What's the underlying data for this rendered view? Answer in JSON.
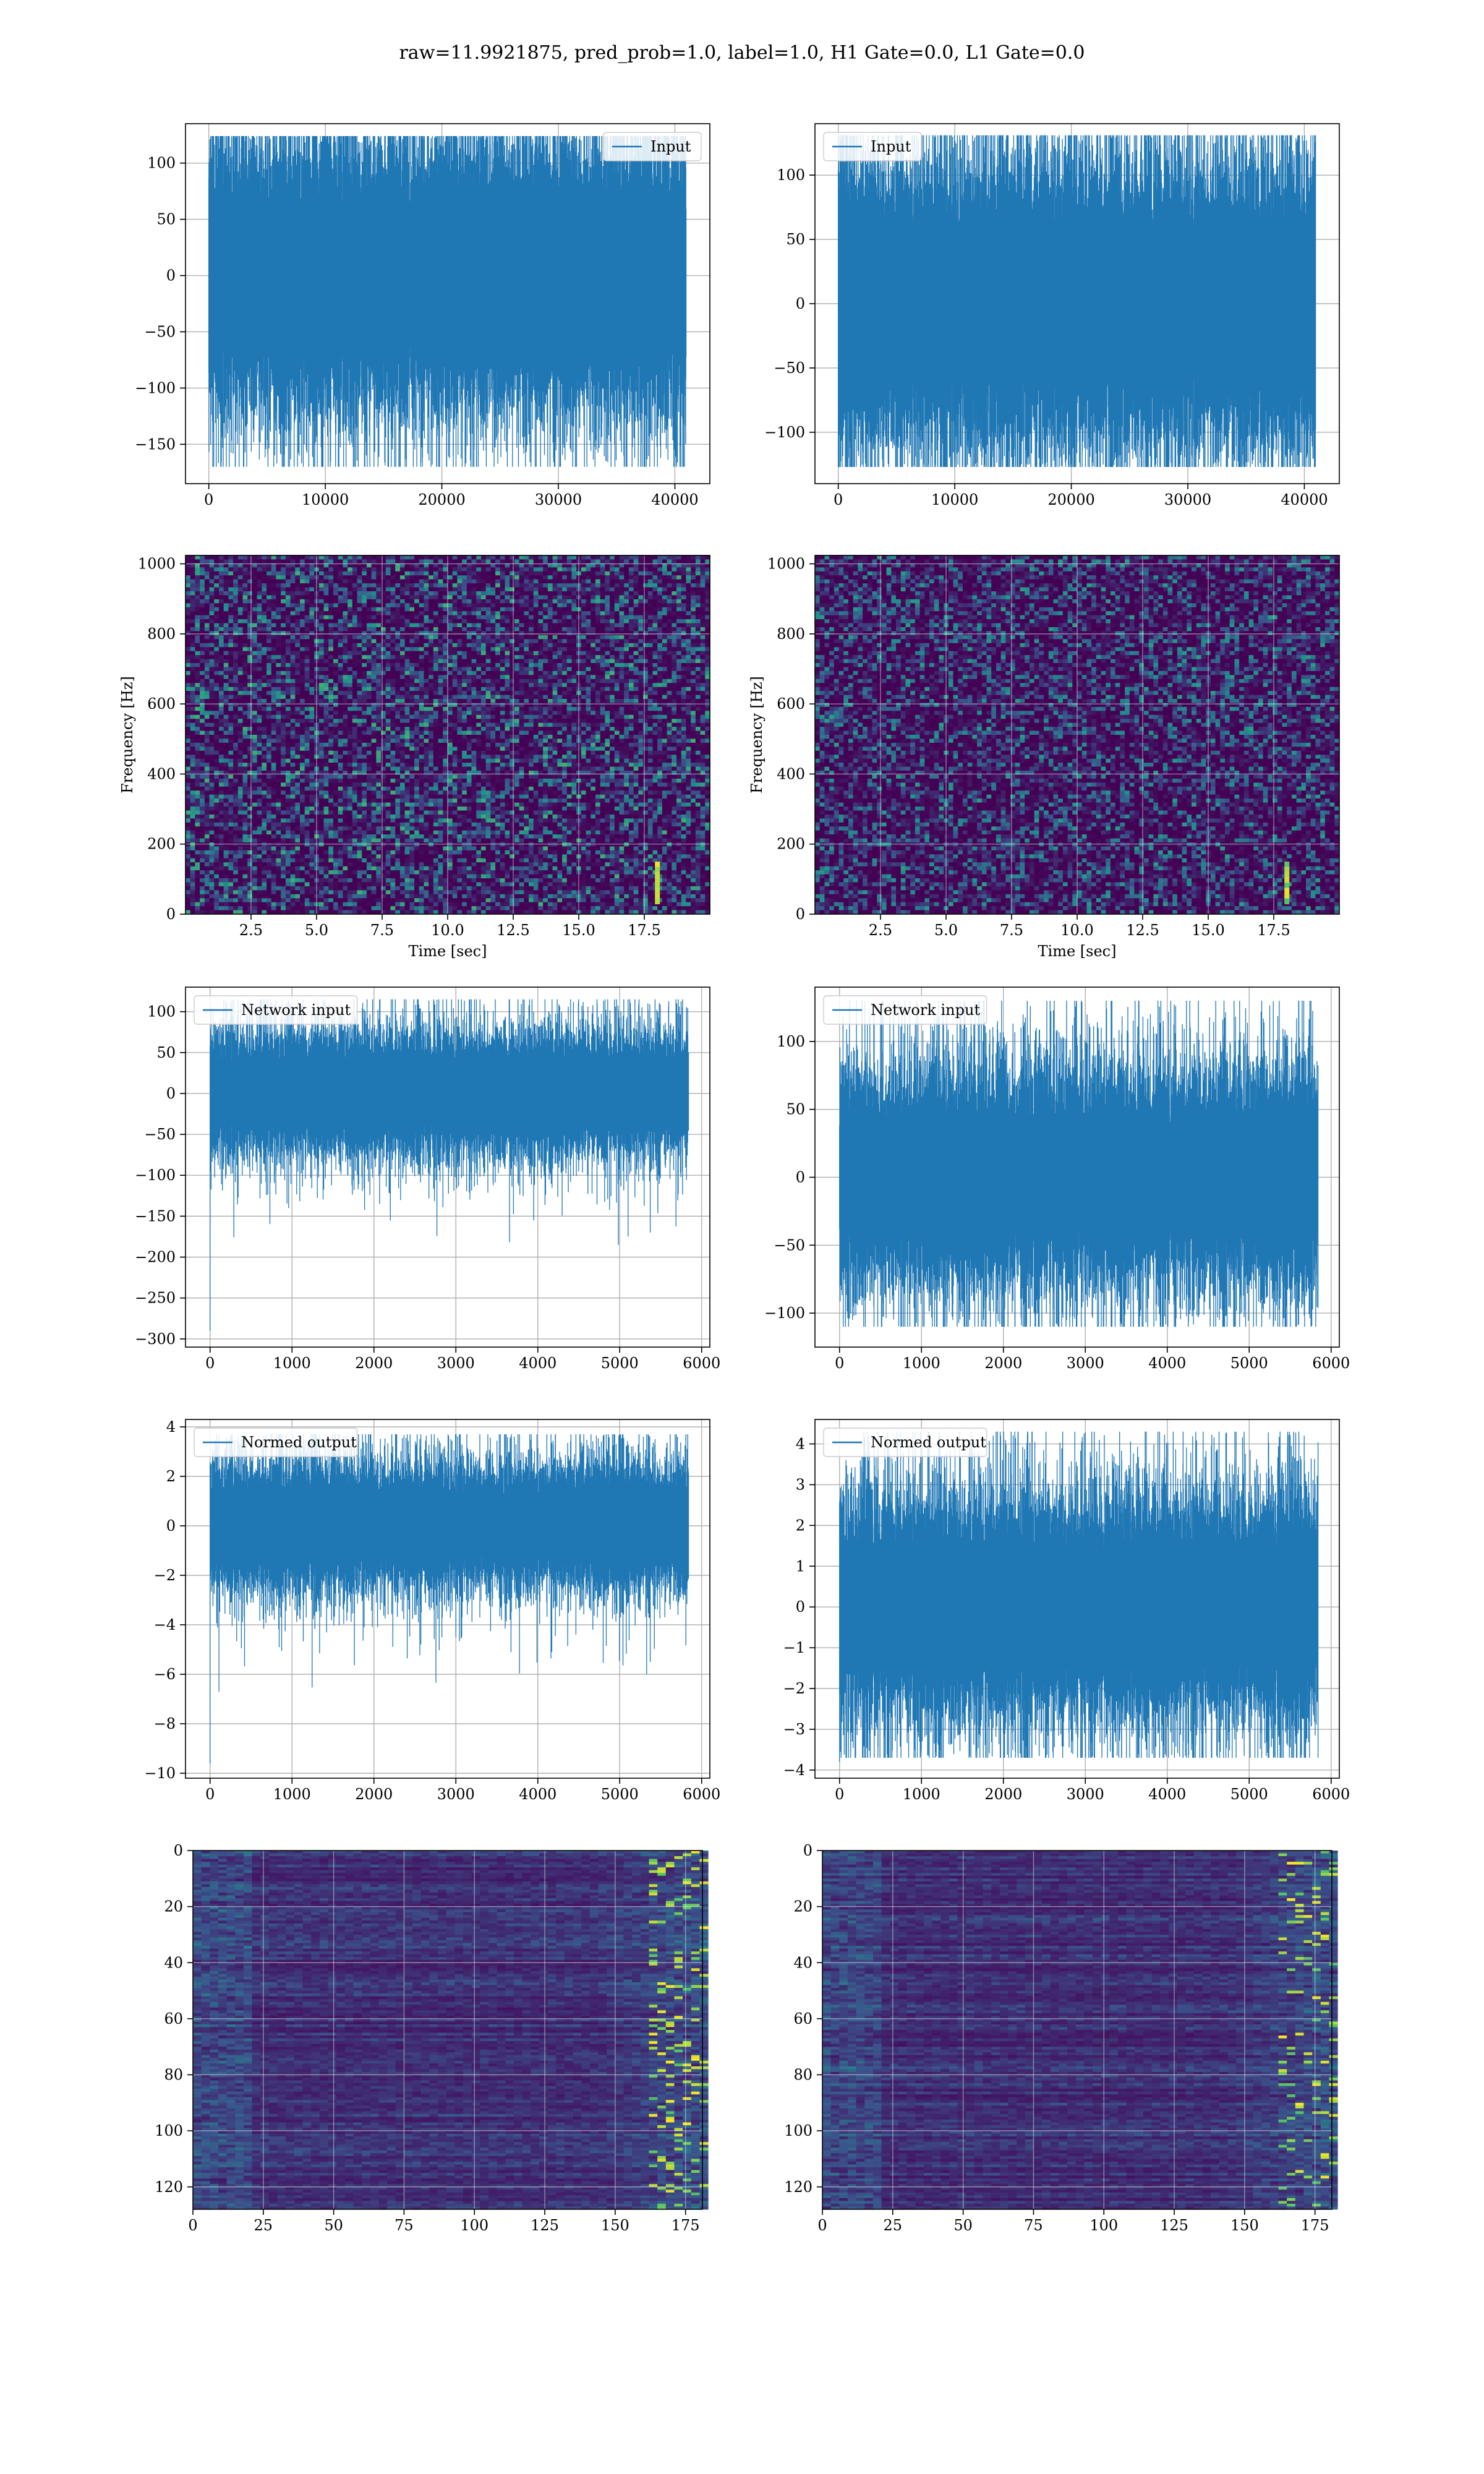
{
  "figure": {
    "title": "raw=11.9921875, pred_prob=1.0, label=1.0, H1 Gate=0.0, L1 Gate=0.0"
  },
  "colors": {
    "line": "#1f77b4",
    "grid": "#b0b0b0",
    "heat_low": "#440154",
    "heat_high": "#fde725"
  },
  "chart_data": [
    {
      "id": "input-left",
      "type": "line",
      "series": [
        {
          "name": "Input",
          "length": 40960,
          "envelope": [
            -100,
            100
          ],
          "min": -170,
          "max": 124
        }
      ],
      "xlim": [
        -2000,
        43000
      ],
      "ylim": [
        -185,
        135
      ],
      "xticks": [
        0,
        10000,
        20000,
        30000,
        40000
      ],
      "yticks": [
        -150,
        -100,
        -50,
        0,
        50,
        100
      ],
      "legend": "top-right",
      "grid": true,
      "xlabel": "",
      "ylabel": ""
    },
    {
      "id": "input-right",
      "type": "line",
      "series": [
        {
          "name": "Input",
          "length": 40960,
          "envelope": [
            -90,
            90
          ],
          "min": -127,
          "max": 131
        }
      ],
      "xlim": [
        -2000,
        43000
      ],
      "ylim": [
        -140,
        140
      ],
      "xticks": [
        0,
        10000,
        20000,
        30000,
        40000
      ],
      "yticks": [
        -100,
        -50,
        0,
        50,
        100
      ],
      "legend": "top-left",
      "grid": true,
      "xlabel": "",
      "ylabel": ""
    },
    {
      "id": "spectrogram-left",
      "type": "heatmap",
      "xlim": [
        0,
        20
      ],
      "ylim": [
        0,
        1024
      ],
      "xticks": [
        2.5,
        5.0,
        7.5,
        10.0,
        12.5,
        15.0,
        17.5
      ],
      "yticks": [
        0,
        200,
        400,
        600,
        800,
        1000
      ],
      "xlabel": "Time [sec]",
      "ylabel": "Frequency [Hz]",
      "grid": true,
      "bright_feature": {
        "time": 18.0,
        "freq_range": [
          30,
          150
        ]
      }
    },
    {
      "id": "spectrogram-right",
      "type": "heatmap",
      "xlim": [
        0,
        20
      ],
      "ylim": [
        0,
        1024
      ],
      "xticks": [
        2.5,
        5.0,
        7.5,
        10.0,
        12.5,
        15.0,
        17.5
      ],
      "yticks": [
        0,
        200,
        400,
        600,
        800,
        1000
      ],
      "xlabel": "Time [sec]",
      "ylabel": "Frequency [Hz]",
      "grid": true,
      "bright_feature": {
        "time": 18.0,
        "freq_range": [
          30,
          150
        ]
      }
    },
    {
      "id": "network-left",
      "type": "line",
      "series": [
        {
          "name": "Network input",
          "length": 5840,
          "envelope": [
            -60,
            60
          ],
          "min": -290,
          "max": 115
        }
      ],
      "xlim": [
        -300,
        6100
      ],
      "ylim": [
        -310,
        130
      ],
      "xticks": [
        0,
        1000,
        2000,
        3000,
        4000,
        5000,
        6000
      ],
      "yticks": [
        -300,
        -250,
        -200,
        -150,
        -100,
        -50,
        0,
        50,
        100
      ],
      "legend": "top-left",
      "grid": true,
      "xlabel": "",
      "ylabel": ""
    },
    {
      "id": "network-right",
      "type": "line",
      "series": [
        {
          "name": "Network input",
          "length": 5840,
          "envelope": [
            -65,
            65
          ],
          "min": -110,
          "max": 130
        }
      ],
      "xlim": [
        -300,
        6100
      ],
      "ylim": [
        -125,
        140
      ],
      "xticks": [
        0,
        1000,
        2000,
        3000,
        4000,
        5000,
        6000
      ],
      "yticks": [
        -100,
        -50,
        0,
        50,
        100
      ],
      "legend": "top-left",
      "grid": true,
      "xlabel": "",
      "ylabel": ""
    },
    {
      "id": "normed-left",
      "type": "line",
      "series": [
        {
          "name": "Normed output",
          "length": 5840,
          "envelope": [
            -2,
            2
          ],
          "min": -9.6,
          "max": 3.7
        }
      ],
      "xlim": [
        -300,
        6100
      ],
      "ylim": [
        -10.2,
        4.3
      ],
      "xticks": [
        0,
        1000,
        2000,
        3000,
        4000,
        5000,
        6000
      ],
      "yticks": [
        -10,
        -8,
        -6,
        -4,
        -2,
        0,
        2,
        4
      ],
      "legend": "top-left",
      "grid": true,
      "xlabel": "",
      "ylabel": ""
    },
    {
      "id": "normed-right",
      "type": "line",
      "series": [
        {
          "name": "Normed output",
          "length": 5840,
          "envelope": [
            -2.2,
            2.2
          ],
          "min": -3.7,
          "max": 4.3
        }
      ],
      "xlim": [
        -300,
        6100
      ],
      "ylim": [
        -4.2,
        4.6
      ],
      "xticks": [
        0,
        1000,
        2000,
        3000,
        4000,
        5000,
        6000
      ],
      "yticks": [
        -4,
        -3,
        -2,
        -1,
        0,
        1,
        2,
        3,
        4
      ],
      "legend": "top-left",
      "grid": true,
      "xlabel": "",
      "ylabel": ""
    },
    {
      "id": "features-left",
      "type": "heatmap",
      "xlim": [
        0,
        181
      ],
      "ylim": [
        128,
        0
      ],
      "xticks": [
        0,
        25,
        50,
        75,
        100,
        125,
        150,
        175
      ],
      "yticks": [
        0,
        20,
        40,
        60,
        80,
        100,
        120
      ],
      "grid": true,
      "bright_columns": [
        160,
        180
      ]
    },
    {
      "id": "features-right",
      "type": "heatmap",
      "xlim": [
        0,
        181
      ],
      "ylim": [
        128,
        0
      ],
      "xticks": [
        0,
        25,
        50,
        75,
        100,
        125,
        150,
        175
      ],
      "yticks": [
        0,
        20,
        40,
        60,
        80,
        100,
        120
      ],
      "grid": true,
      "bright_columns": [
        160,
        180
      ]
    }
  ]
}
